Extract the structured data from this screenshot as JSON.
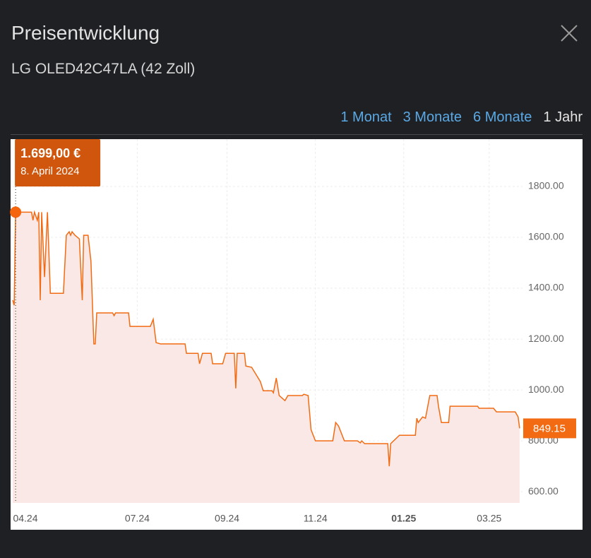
{
  "header": {
    "title": "Preisentwicklung",
    "subtitle": "LG OLED42C47LA (42 Zoll)"
  },
  "tabs": [
    {
      "label": "1 Monat",
      "active": false
    },
    {
      "label": "3 Monate",
      "active": false
    },
    {
      "label": "6 Monate",
      "active": false
    },
    {
      "label": "1 Jahr",
      "active": true
    }
  ],
  "chart_data": {
    "type": "line",
    "color": "#f26b13",
    "area_color": "#f9e8e5",
    "x": [
      "2024-04-06",
      "2024-04-07",
      "2024-04-08",
      "2024-04-19",
      "2024-04-20",
      "2024-04-21",
      "2024-04-23",
      "2024-04-24",
      "2024-04-25",
      "2024-04-26",
      "2024-04-28",
      "2024-04-30",
      "2024-05-02",
      "2024-05-11",
      "2024-05-13",
      "2024-05-15",
      "2024-05-16",
      "2024-05-17",
      "2024-05-19",
      "2024-05-22",
      "2024-05-24",
      "2024-05-25",
      "2024-05-28",
      "2024-05-30",
      "2024-06-01",
      "2024-06-02",
      "2024-06-03",
      "2024-06-14",
      "2024-06-15",
      "2024-06-16",
      "2024-06-25",
      "2024-06-26",
      "2024-07-10",
      "2024-07-12",
      "2024-07-14",
      "2024-07-17",
      "2024-08-03",
      "2024-08-04",
      "2024-08-12",
      "2024-08-13",
      "2024-08-15",
      "2024-08-21",
      "2024-08-22",
      "2024-08-29",
      "2024-08-31",
      "2024-09-06",
      "2024-09-07",
      "2024-09-08",
      "2024-09-13",
      "2024-09-14",
      "2024-09-18",
      "2024-09-21",
      "2024-09-24",
      "2024-09-26",
      "2024-10-02",
      "2024-10-03",
      "2024-10-05",
      "2024-10-07",
      "2024-10-11",
      "2024-10-13",
      "2024-10-23",
      "2024-10-24",
      "2024-10-27",
      "2024-10-29",
      "2024-11-01",
      "2024-11-13",
      "2024-11-15",
      "2024-11-17",
      "2024-11-21",
      "2024-11-30",
      "2024-12-02",
      "2024-12-03",
      "2024-12-05",
      "2024-12-21",
      "2024-12-22",
      "2024-12-23",
      "2024-12-29",
      "2025-01-09",
      "2025-01-10",
      "2025-01-11",
      "2025-01-14",
      "2025-01-16",
      "2025-01-19",
      "2025-01-24",
      "2025-01-25",
      "2025-01-27",
      "2025-02-01",
      "2025-02-02",
      "2025-02-21",
      "2025-02-22",
      "2025-03-04",
      "2025-03-06",
      "2025-03-19",
      "2025-03-21",
      "2025-03-22"
    ],
    "values": [
      1353,
      1333,
      1699,
      1699,
      1667,
      1699,
      1667,
      1699,
      1353,
      1699,
      1444,
      1699,
      1380,
      1380,
      1608,
      1622,
      1608,
      1622,
      1608,
      1594,
      1353,
      1608,
      1608,
      1506,
      1181,
      1181,
      1303,
      1303,
      1292,
      1303,
      1303,
      1250,
      1250,
      1278,
      1186,
      1181,
      1181,
      1144,
      1144,
      1103,
      1144,
      1144,
      1103,
      1103,
      1144,
      1144,
      1006,
      1144,
      1144,
      1094,
      1089,
      1061,
      1033,
      997,
      997,
      989,
      1047,
      978,
      958,
      978,
      978,
      983,
      978,
      844,
      800,
      800,
      872,
      858,
      800,
      800,
      792,
      800,
      789,
      789,
      700,
      789,
      822,
      822,
      889,
      872,
      894,
      889,
      978,
      978,
      936,
      872,
      872,
      936,
      936,
      928,
      928,
      914,
      914,
      894,
      849.15
    ],
    "value_labels": [
      null,
      null,
      "1.699,00 €",
      null,
      null,
      null,
      null,
      null,
      null,
      null,
      null,
      null,
      null,
      null,
      null,
      null,
      null,
      null,
      null,
      null,
      null,
      null,
      null,
      null,
      null,
      null,
      null,
      null,
      null,
      null,
      null,
      null,
      null,
      null,
      null,
      null,
      null,
      null,
      null,
      null,
      null,
      null,
      null,
      null,
      null,
      null,
      null,
      null,
      null,
      null,
      null,
      null,
      null,
      null,
      null,
      null,
      null,
      null,
      null,
      null,
      null,
      null,
      null,
      null,
      null,
      null,
      null,
      null,
      null,
      null,
      null,
      null,
      null,
      null,
      null,
      null,
      null,
      null,
      null,
      null,
      null,
      null,
      null,
      null,
      null,
      null,
      null,
      null,
      null,
      null,
      null,
      null,
      null,
      null,
      "849.15"
    ],
    "tooltip_date": "8. April 2024",
    "xlim": [
      "2024-04-06",
      "2025-03-24"
    ],
    "xticks": [
      {
        "value": "2024-04-01",
        "label": "04.24"
      },
      {
        "value": "2024-07-01",
        "label": "07.24"
      },
      {
        "value": "2024-09-01",
        "label": "09.24"
      },
      {
        "value": "2024-11-01",
        "label": "11.24"
      },
      {
        "value": "2025-01-01",
        "label": "01.25"
      },
      {
        "value": "2025-03-01",
        "label": "03.25"
      }
    ],
    "ylim": [
      556,
      1986
    ],
    "yticks": [
      {
        "value": 600,
        "label": "600.00"
      },
      {
        "value": 800,
        "label": "800.00"
      },
      {
        "value": 1000,
        "label": "1000.00"
      },
      {
        "value": 1200,
        "label": "1200.00"
      },
      {
        "value": 1400,
        "label": "1400.00"
      },
      {
        "value": 1600,
        "label": "1600.00"
      },
      {
        "value": 1800,
        "label": "1800.00"
      }
    ],
    "grid": true
  }
}
